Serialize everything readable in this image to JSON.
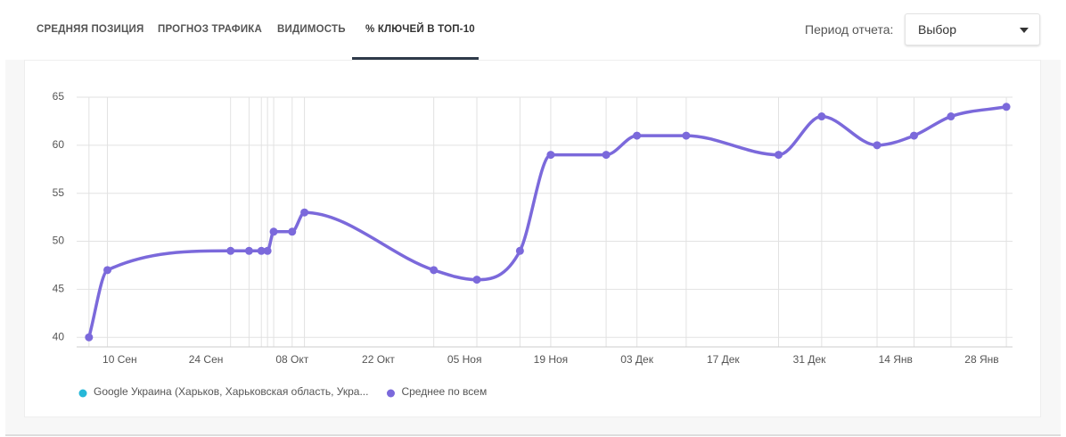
{
  "tabs": [
    "СРЕДНЯЯ ПОЗИЦИЯ",
    "ПРОГНОЗ ТРАФИКА",
    "ВИДИМОСТЬ",
    "% КЛЮЧЕЙ В ТОП-10"
  ],
  "period_label": "Период отчета:",
  "period_select": "Выбор",
  "chart_data": {
    "type": "line",
    "x": [
      "09-05",
      "09-08",
      "09-28",
      "10-01",
      "10-03",
      "10-04",
      "10-05",
      "10-08",
      "10-10",
      "10-31",
      "11-07",
      "11-14",
      "11-19",
      "11-28",
      "12-03",
      "12-11",
      "12-26",
      "01-02",
      "01-11",
      "01-17",
      "01-23",
      "02-01"
    ],
    "series": [
      {
        "name": "Google Украина (Харьков, Харьковская область, Укра...",
        "color": "#26b8d8",
        "values": [
          null,
          null,
          null,
          null,
          null,
          null,
          null,
          null,
          null,
          null,
          null,
          null,
          null,
          null,
          null,
          null,
          null,
          null,
          null,
          null,
          null,
          null
        ]
      },
      {
        "name": "Среднее по всем",
        "color": "#7b69db",
        "values": [
          40,
          47,
          49,
          49,
          49,
          49,
          51,
          51,
          53,
          47,
          46,
          49,
          59,
          59,
          61,
          61,
          59,
          63,
          60,
          61,
          63,
          64
        ]
      }
    ],
    "xlim": [
      "09-03",
      "02-02"
    ],
    "xticks": [
      {
        "value": "09-10",
        "label": "10 Сен"
      },
      {
        "value": "09-24",
        "label": "24 Сен"
      },
      {
        "value": "10-08",
        "label": "08 Окт"
      },
      {
        "value": "10-22",
        "label": "22 Окт"
      },
      {
        "value": "11-05",
        "label": "05 Ноя"
      },
      {
        "value": "11-19",
        "label": "19 Ноя"
      },
      {
        "value": "12-03",
        "label": "03 Дек"
      },
      {
        "value": "12-17",
        "label": "17 Дек"
      },
      {
        "value": "12-31",
        "label": "31 Дек"
      },
      {
        "value": "01-14",
        "label": "14 Янв"
      },
      {
        "value": "01-28",
        "label": "28 Янв"
      }
    ],
    "ylim": [
      39,
      65
    ],
    "yticks": [
      40,
      45,
      50,
      55,
      60,
      65
    ],
    "grid": true,
    "legend": "bottom-left"
  }
}
